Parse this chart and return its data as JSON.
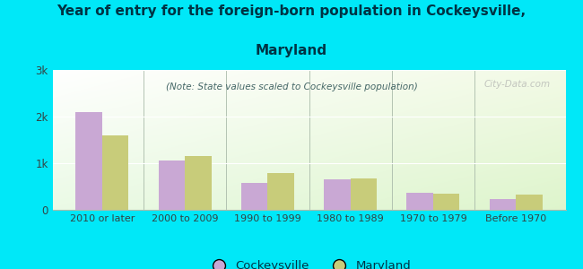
{
  "title_line1": "Year of entry for the foreign-born population in Cockeysville,",
  "title_line2": "Maryland",
  "subtitle": "(Note: State values scaled to Cockeysville population)",
  "categories": [
    "2010 or later",
    "2000 to 2009",
    "1990 to 1999",
    "1980 to 1989",
    "1970 to 1979",
    "Before 1970"
  ],
  "cockeysville_values": [
    2100,
    1050,
    580,
    660,
    370,
    235
  ],
  "maryland_values": [
    1600,
    1160,
    790,
    680,
    350,
    320
  ],
  "cockeysville_color": "#c9a8d4",
  "maryland_color": "#c8cc7a",
  "background_color": "#00e8f8",
  "yticks": [
    0,
    1000,
    2000,
    3000
  ],
  "ytick_labels": [
    "0",
    "1k",
    "2k",
    "3k"
  ],
  "ylim": [
    0,
    3000
  ],
  "title_fontsize": 11,
  "subtitle_fontsize": 7.5,
  "tick_fontsize": 8.5,
  "legend_fontsize": 9.5,
  "title_color": "#003344",
  "subtitle_color": "#446666",
  "tick_color": "#334444",
  "watermark": "City-Data.com"
}
